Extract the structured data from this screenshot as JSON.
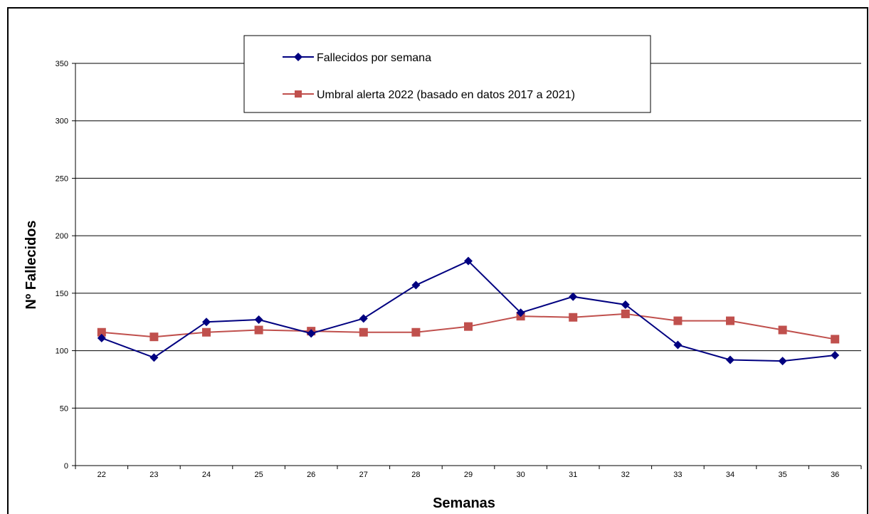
{
  "chart_data": {
    "type": "line",
    "title": "",
    "xlabel": "Semanas",
    "ylabel": "Nº Fallecidos",
    "categories": [
      "22",
      "23",
      "24",
      "25",
      "26",
      "27",
      "28",
      "29",
      "30",
      "31",
      "32",
      "33",
      "34",
      "35",
      "36"
    ],
    "ylim": [
      0,
      350
    ],
    "yticks": [
      0,
      50,
      100,
      150,
      200,
      250,
      300,
      350
    ],
    "grid": "horizontal",
    "legend_position": "top-center",
    "series": [
      {
        "name": "Fallecidos por semana",
        "color": "#000080",
        "marker": "diamond",
        "values": [
          111,
          94,
          125,
          127,
          115,
          128,
          157,
          178,
          133,
          147,
          140,
          105,
          92,
          91,
          96
        ]
      },
      {
        "name": "Umbral alerta 2022 (basado en datos 2017 a 2021)",
        "color": "#C0504D",
        "marker": "square",
        "values": [
          116,
          112,
          116,
          118,
          117,
          116,
          116,
          121,
          130,
          129,
          132,
          126,
          126,
          118,
          110
        ]
      }
    ]
  }
}
